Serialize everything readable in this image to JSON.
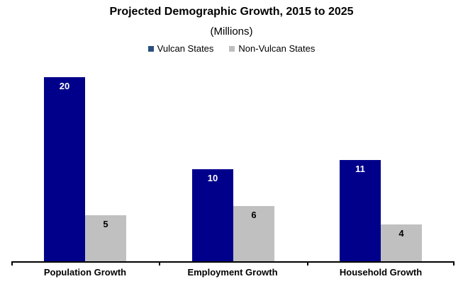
{
  "chart_data": {
    "type": "bar",
    "title": "Projected Demographic Growth, 2015 to 2025",
    "subtitle": "(Millions)",
    "categories": [
      "Population Growth",
      "Employment Growth",
      "Household Growth"
    ],
    "series": [
      {
        "name": "Vulcan States",
        "color": "#00008B",
        "marker_color": "#2B4F7E",
        "label_color": "#FFFFFF",
        "values": [
          20,
          10,
          11
        ]
      },
      {
        "name": "Non-Vulcan States",
        "color": "#C0C0C0",
        "marker_color": "#BFBFBF",
        "label_color": "#000000",
        "values": [
          5,
          6,
          4
        ]
      }
    ],
    "value_labels": true,
    "legend_position": "top",
    "grid": false,
    "axis_color": "#000000",
    "background": "#FFFFFF",
    "ylim": [
      0,
      21
    ]
  }
}
